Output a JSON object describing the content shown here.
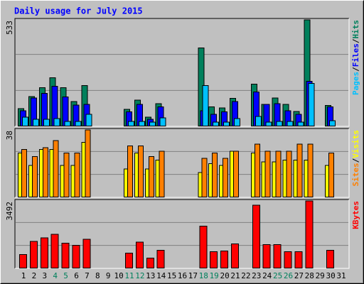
{
  "chart_data": [
    {
      "type": "bar",
      "title": "Daily usage for July 2015",
      "categories": [
        "1",
        "2",
        "3",
        "4",
        "5",
        "6",
        "7",
        "8",
        "9",
        "10",
        "11",
        "12",
        "13",
        "14",
        "15",
        "16",
        "17",
        "18",
        "19",
        "20",
        "21",
        "22",
        "23",
        "24",
        "25",
        "26",
        "27",
        "28",
        "29",
        "30",
        "31"
      ],
      "x_label_colors": [
        "#000000",
        "#000000",
        "#000000",
        "#00805c",
        "#00805c",
        "#000000",
        "#000000",
        "#000000",
        "#000000",
        "#000000",
        "#00805c",
        "#00805c",
        "#000000",
        "#000000",
        "#000000",
        "#000000",
        "#000000",
        "#00805c",
        "#00805c",
        "#000000",
        "#000000",
        "#000000",
        "#000000",
        "#000000",
        "#00805c",
        "#00805c",
        "#000000",
        "#000000",
        "#000000",
        "#000000",
        "#000000"
      ],
      "legend_separator": "/",
      "ylim": [
        0,
        533
      ],
      "yticks": [
        533
      ],
      "series": [
        {
          "name": "Hits",
          "color": "#00805c",
          "values": [
            89,
            150,
            193,
            243,
            193,
            125,
            204,
            0,
            0,
            0,
            86,
            132,
            47,
            114,
            0,
            0,
            0,
            393,
            97,
            93,
            140,
            0,
            211,
            111,
            143,
            111,
            75,
            533,
            0,
            104,
            0
          ]
        },
        {
          "name": "Files",
          "color": "#0000ff",
          "values": [
            79,
            143,
            165,
            200,
            147,
            107,
            111,
            0,
            0,
            0,
            72,
            111,
            36,
            97,
            0,
            0,
            0,
            79,
            61,
            72,
            125,
            0,
            172,
            111,
            114,
            79,
            61,
            225,
            0,
            97,
            0
          ]
        },
        {
          "name": "Pages",
          "color": "#00c0ff",
          "values": [
            47,
            36,
            36,
            39,
            25,
            25,
            61,
            0,
            0,
            0,
            25,
            25,
            21,
            43,
            0,
            0,
            0,
            204,
            21,
            21,
            39,
            0,
            50,
            21,
            25,
            25,
            21,
            215,
            0,
            29,
            0
          ]
        }
      ]
    },
    {
      "type": "bar",
      "legend_separator": "/",
      "ylim": [
        0,
        38
      ],
      "yticks": [
        38
      ],
      "series": [
        {
          "name": "Visits",
          "color": "#ffff00",
          "values": [
            25,
            18,
            27,
            27,
            18,
            18,
            31,
            0,
            0,
            0,
            16,
            25,
            16,
            21,
            0,
            0,
            0,
            14,
            19,
            18,
            26,
            0,
            25,
            20,
            20,
            21,
            21,
            21,
            0,
            18,
            0
          ]
        },
        {
          "name": "Sites",
          "color": "#ff8000",
          "values": [
            27,
            23,
            28,
            32,
            25,
            25,
            38,
            0,
            0,
            0,
            29,
            29,
            23,
            26,
            0,
            0,
            0,
            22,
            25,
            22,
            26,
            0,
            30,
            26,
            26,
            26,
            30,
            30,
            0,
            25,
            0
          ]
        }
      ]
    },
    {
      "type": "bar",
      "legend_separator": "/",
      "ylim": [
        0,
        3492
      ],
      "yticks": [
        3492
      ],
      "series": [
        {
          "name": "KBytes",
          "color": "#ff0000",
          "values": [
            713,
            1389,
            1577,
            1765,
            1314,
            1202,
            1502,
            0,
            0,
            0,
            789,
            1352,
            526,
            939,
            0,
            0,
            0,
            2178,
            864,
            901,
            1277,
            0,
            3267,
            1239,
            1239,
            864,
            864,
            3492,
            0,
            939,
            0
          ]
        }
      ]
    }
  ]
}
